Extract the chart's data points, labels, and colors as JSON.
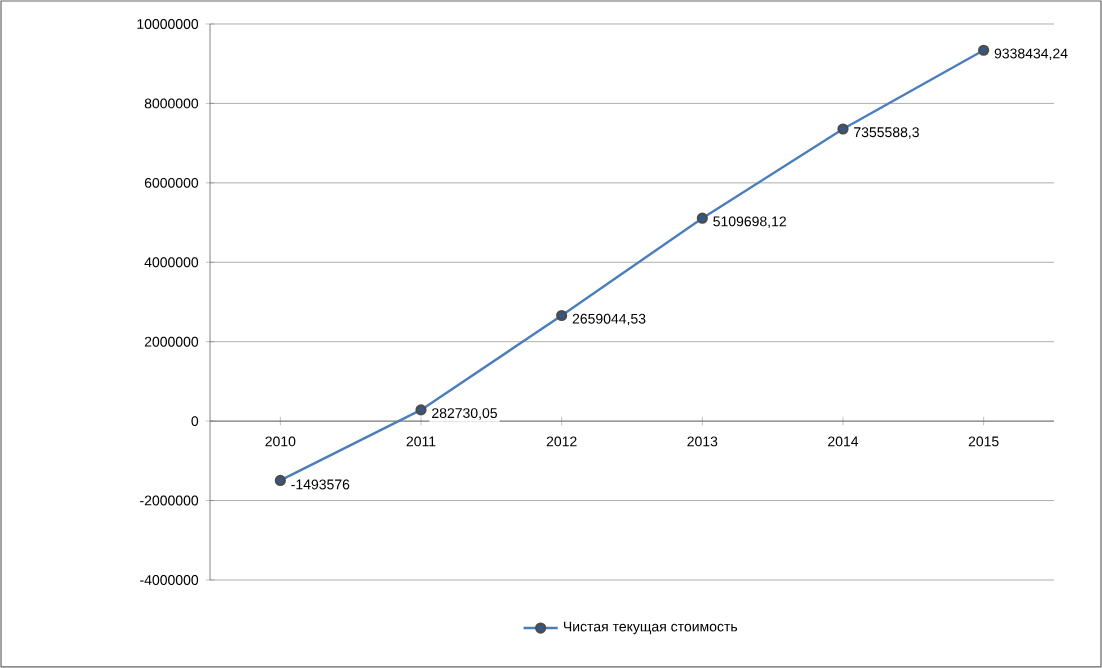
{
  "chart_data": {
    "type": "line",
    "categories": [
      "2010",
      "2011",
      "2012",
      "2013",
      "2014",
      "2015"
    ],
    "series": [
      {
        "name": "Чистая текущая стоимость",
        "color": "#4a7ebb",
        "values": [
          -1493576,
          282730.05,
          2659044.53,
          5109698.12,
          7355588.3,
          9338434.24
        ]
      }
    ],
    "value_labels": [
      "-1493576",
      "282730,05",
      "2659044,53",
      "5109698,12",
      "7355588,3",
      "9338434,24"
    ],
    "ylim": [
      -4000000,
      10000000
    ],
    "yticks": [
      -4000000,
      -2000000,
      0,
      2000000,
      4000000,
      6000000,
      8000000,
      10000000
    ],
    "grid": "y",
    "legend": "bottom",
    "marker": "circle",
    "line_style": "solid"
  }
}
